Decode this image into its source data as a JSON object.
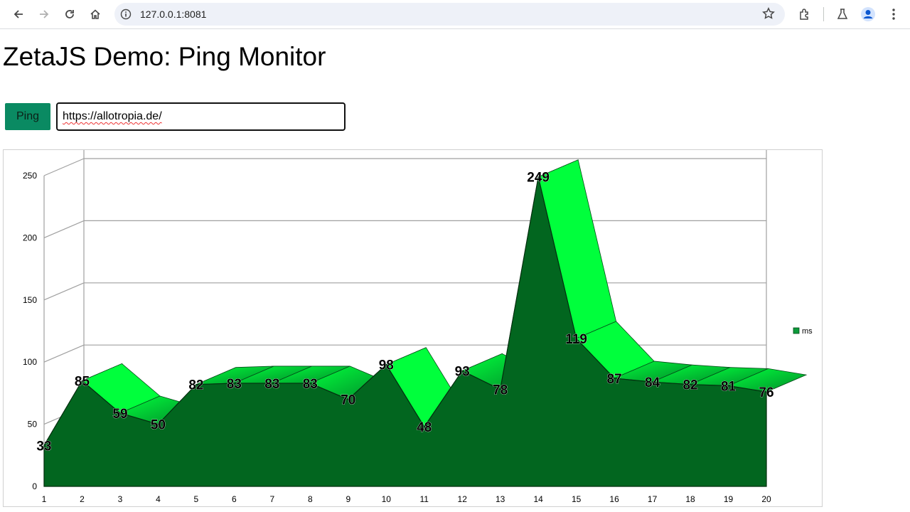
{
  "browser": {
    "url": "127.0.0.1:8081",
    "icons": [
      "back-icon",
      "forward-icon",
      "reload-icon",
      "home-icon",
      "site-info-icon",
      "bookmark-star-icon",
      "extensions-icon",
      "labs-icon",
      "profile-icon",
      "menu-icon"
    ]
  },
  "page": {
    "title": "ZetaJS Demo: Ping Monitor",
    "ping_label": "Ping",
    "url_value": "https://allotropia.de/"
  },
  "colors": {
    "accent": "#0a8a62",
    "area_front": "#02661f",
    "area_top_light": "#00ff3c",
    "area_top_dark": "#028a2a"
  },
  "chart_data": {
    "type": "area",
    "categories": [
      "1",
      "2",
      "3",
      "4",
      "5",
      "6",
      "7",
      "8",
      "9",
      "10",
      "11",
      "12",
      "13",
      "14",
      "15",
      "16",
      "17",
      "18",
      "19",
      "20"
    ],
    "series": [
      {
        "name": "ms",
        "values": [
          33,
          85,
          59,
          50,
          82,
          83,
          83,
          83,
          70,
          98,
          48,
          93,
          78,
          249,
          119,
          87,
          84,
          82,
          81,
          76
        ]
      }
    ],
    "yticks": [
      "0",
      "50",
      "100",
      "150",
      "200",
      "250"
    ],
    "ylim": [
      0,
      260
    ],
    "grid": true,
    "legend": "right",
    "three_d": true
  }
}
